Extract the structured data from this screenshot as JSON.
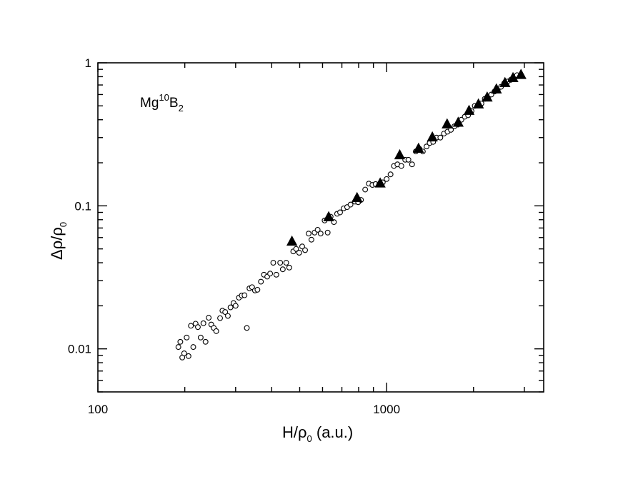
{
  "chart_data": {
    "type": "scatter",
    "title": "",
    "xscale": "log",
    "yscale": "log",
    "xlim": [
      100,
      3500
    ],
    "ylim": [
      0.005,
      1
    ],
    "grid": false,
    "xlabel": {
      "main": "H/ρ",
      "sub": "0",
      "suffix": " (a.u.)"
    },
    "ylabel": {
      "main": "Δρ/ρ",
      "sub": "0"
    },
    "x_ticks": [
      {
        "value": 100,
        "label": "100"
      },
      {
        "value": 1000,
        "label": "1000"
      }
    ],
    "y_ticks": [
      {
        "value": 0.01,
        "label": "0.01"
      },
      {
        "value": 0.1,
        "label": "0.1"
      },
      {
        "value": 1,
        "label": "1"
      }
    ],
    "annotation": {
      "base": "Mg",
      "sup": "10",
      "mid": "B",
      "sub": "2"
    },
    "series": [
      {
        "marker": "open-circle",
        "color": "#000000",
        "points": [
          [
            190,
            0.0103
          ],
          [
            193,
            0.0112
          ],
          [
            196,
            0.0087
          ],
          [
            199,
            0.0093
          ],
          [
            203,
            0.012
          ],
          [
            206,
            0.0089
          ],
          [
            210,
            0.0145
          ],
          [
            214,
            0.0103
          ],
          [
            218,
            0.015
          ],
          [
            222,
            0.0142
          ],
          [
            227,
            0.012
          ],
          [
            232,
            0.0151
          ],
          [
            236,
            0.0112
          ],
          [
            242,
            0.0165
          ],
          [
            247,
            0.0148
          ],
          [
            252,
            0.014
          ],
          [
            257,
            0.0133
          ],
          [
            265,
            0.0164
          ],
          [
            270,
            0.0185
          ],
          [
            276,
            0.0181
          ],
          [
            282,
            0.017
          ],
          [
            288,
            0.0195
          ],
          [
            295,
            0.0209
          ],
          [
            300,
            0.02
          ],
          [
            308,
            0.0228
          ],
          [
            315,
            0.0236
          ],
          [
            322,
            0.0237
          ],
          [
            328,
            0.014
          ],
          [
            335,
            0.0265
          ],
          [
            342,
            0.027
          ],
          [
            350,
            0.0256
          ],
          [
            357,
            0.0259
          ],
          [
            367,
            0.0295
          ],
          [
            376,
            0.033
          ],
          [
            386,
            0.032
          ],
          [
            395,
            0.0336
          ],
          [
            405,
            0.04
          ],
          [
            415,
            0.033
          ],
          [
            428,
            0.04
          ],
          [
            437,
            0.036
          ],
          [
            449,
            0.04
          ],
          [
            460,
            0.037
          ],
          [
            475,
            0.048
          ],
          [
            486,
            0.05
          ],
          [
            498,
            0.047
          ],
          [
            510,
            0.052
          ],
          [
            522,
            0.049
          ],
          [
            537,
            0.064
          ],
          [
            549,
            0.058
          ],
          [
            563,
            0.065
          ],
          [
            577,
            0.068
          ],
          [
            591,
            0.064
          ],
          [
            610,
            0.079
          ],
          [
            625,
            0.065
          ],
          [
            640,
            0.084
          ],
          [
            657,
            0.077
          ],
          [
            674,
            0.088
          ],
          [
            690,
            0.09
          ],
          [
            710,
            0.096
          ],
          [
            730,
            0.098
          ],
          [
            750,
            0.102
          ],
          [
            777,
            0.107
          ],
          [
            797,
            0.106
          ],
          [
            815,
            0.11
          ],
          [
            843,
            0.13
          ],
          [
            868,
            0.143
          ],
          [
            893,
            0.14
          ],
          [
            916,
            0.142
          ],
          [
            943,
            0.141
          ],
          [
            970,
            0.146
          ],
          [
            1000,
            0.154
          ],
          [
            1032,
            0.166
          ],
          [
            1060,
            0.19
          ],
          [
            1090,
            0.195
          ],
          [
            1125,
            0.19
          ],
          [
            1160,
            0.21
          ],
          [
            1190,
            0.21
          ],
          [
            1225,
            0.195
          ],
          [
            1262,
            0.24
          ],
          [
            1300,
            0.25
          ],
          [
            1335,
            0.24
          ],
          [
            1375,
            0.26
          ],
          [
            1410,
            0.275
          ],
          [
            1450,
            0.28
          ],
          [
            1490,
            0.3
          ],
          [
            1535,
            0.3
          ],
          [
            1580,
            0.32
          ],
          [
            1625,
            0.33
          ],
          [
            1670,
            0.34
          ],
          [
            1718,
            0.36
          ],
          [
            1767,
            0.37
          ],
          [
            1815,
            0.4
          ],
          [
            1865,
            0.42
          ],
          [
            1915,
            0.43
          ],
          [
            1968,
            0.46
          ],
          [
            2020,
            0.5
          ],
          [
            2075,
            0.51
          ],
          [
            2130,
            0.52
          ],
          [
            2188,
            0.56
          ],
          [
            2245,
            0.58
          ],
          [
            2305,
            0.6
          ],
          [
            2365,
            0.63
          ],
          [
            2425,
            0.65
          ],
          [
            2490,
            0.68
          ],
          [
            2555,
            0.72
          ],
          [
            2620,
            0.74
          ],
          [
            2690,
            0.76
          ],
          [
            2760,
            0.79
          ],
          [
            2830,
            0.82
          ]
        ]
      },
      {
        "marker": "filled-triangle",
        "color": "#000000",
        "points": [
          [
            470,
            0.056
          ],
          [
            630,
            0.083
          ],
          [
            790,
            0.113
          ],
          [
            950,
            0.143
          ],
          [
            1110,
            0.225
          ],
          [
            1290,
            0.25
          ],
          [
            1440,
            0.3
          ],
          [
            1620,
            0.37
          ],
          [
            1770,
            0.38
          ],
          [
            1930,
            0.46
          ],
          [
            2080,
            0.51
          ],
          [
            2230,
            0.57
          ],
          [
            2400,
            0.65
          ],
          [
            2570,
            0.72
          ],
          [
            2740,
            0.78
          ],
          [
            2920,
            0.82
          ]
        ]
      }
    ]
  }
}
